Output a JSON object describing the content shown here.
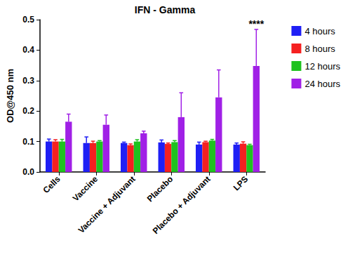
{
  "chart_data": {
    "type": "bar",
    "title": "IFN - Gamma",
    "y_label": "OD@450 nm",
    "categories": [
      "Cells",
      "Vaccine",
      "Vaccine + Adjuvant",
      "Placebo",
      "Placebo + Adjuvant",
      "LPS"
    ],
    "series": [
      {
        "name": "4 hours",
        "color": "#1f1ff5",
        "values": [
          0.1,
          0.095,
          0.095,
          0.097,
          0.09,
          0.09
        ],
        "errors": [
          0.008,
          0.02,
          0.003,
          0.008,
          0.008,
          0.005
        ]
      },
      {
        "name": "8 hours",
        "color": "#f52020",
        "values": [
          0.1,
          0.095,
          0.088,
          0.092,
          0.098,
          0.093
        ],
        "errors": [
          0.006,
          0.006,
          0.004,
          0.003,
          0.003,
          0.006
        ]
      },
      {
        "name": "12 hours",
        "color": "#1fc21f",
        "values": [
          0.1,
          0.1,
          0.1,
          0.098,
          0.103,
          0.088
        ],
        "errors": [
          0.007,
          0.003,
          0.006,
          0.005,
          0.004,
          0.003
        ]
      },
      {
        "name": "24 hours",
        "color": "#a020e6",
        "values": [
          0.165,
          0.155,
          0.127,
          0.18,
          0.245,
          0.348
        ],
        "errors": [
          0.025,
          0.032,
          0.007,
          0.08,
          0.09,
          0.12
        ]
      }
    ],
    "ylim": [
      0,
      0.5
    ],
    "yticks": [
      {
        "value": 0,
        "label": "0.0"
      },
      0.1,
      0.2,
      0.3,
      0.4,
      0.5
    ],
    "annotations": [
      {
        "text": "****",
        "category": "LPS",
        "series": "24 hours"
      }
    ],
    "grid": false,
    "legend": "right"
  }
}
